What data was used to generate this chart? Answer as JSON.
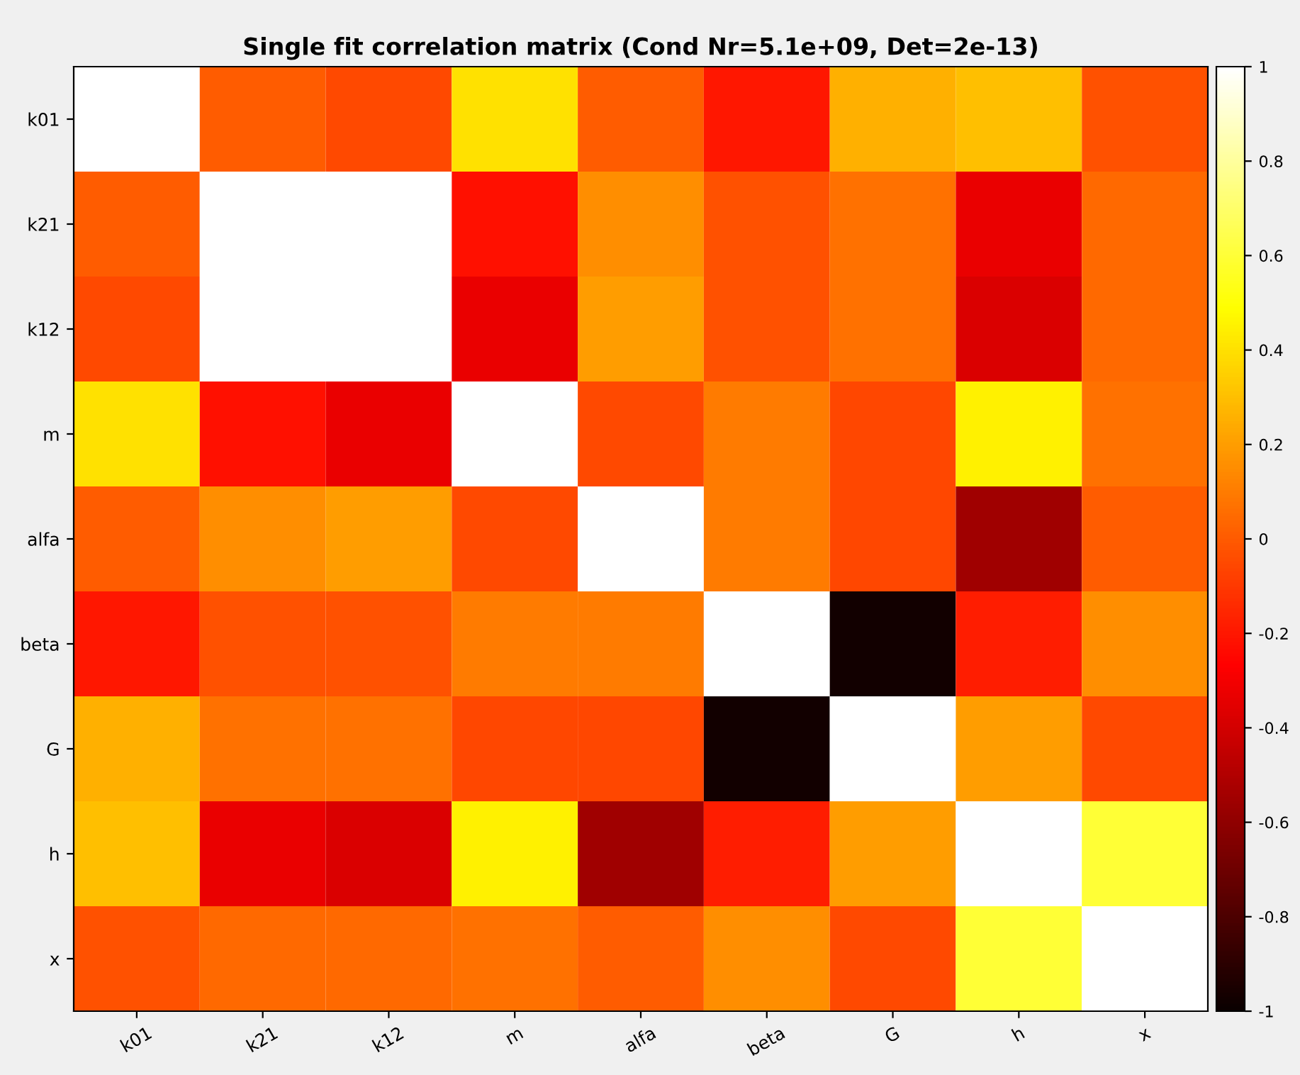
{
  "chart_data": {
    "type": "heatmap",
    "title": "Single fit correlation matrix (Cond Nr=5.1e+09, Det=2e-13)",
    "categories": [
      "k01",
      "k21",
      "k12",
      "m",
      "alfa",
      "beta",
      "G",
      "h",
      "x"
    ],
    "y_categories": [
      "k01",
      "k21",
      "k12",
      "m",
      "alfa",
      "beta",
      "G",
      "h",
      "x"
    ],
    "cells": [
      [
        1,
        0.0,
        -0.05,
        0.4,
        0.0,
        -0.2,
        0.25,
        0.3,
        -0.03
      ],
      [
        0.0,
        1,
        1,
        -0.22,
        0.15,
        -0.03,
        0.07,
        -0.33,
        0.04
      ],
      [
        -0.05,
        1,
        1,
        -0.33,
        0.2,
        -0.03,
        0.07,
        -0.38,
        0.04
      ],
      [
        0.4,
        -0.22,
        -0.33,
        1,
        -0.05,
        0.1,
        -0.06,
        0.45,
        0.07
      ],
      [
        0.0,
        0.15,
        0.2,
        -0.05,
        1,
        0.1,
        -0.06,
        -0.55,
        0.0
      ],
      [
        -0.2,
        -0.03,
        -0.03,
        0.1,
        0.1,
        1,
        -0.97,
        -0.18,
        0.15
      ],
      [
        0.25,
        0.07,
        0.07,
        -0.06,
        -0.06,
        -0.97,
        1,
        0.2,
        -0.05
      ],
      [
        0.3,
        -0.33,
        -0.38,
        0.45,
        -0.55,
        -0.18,
        0.2,
        1,
        0.6
      ],
      [
        -0.03,
        0.04,
        0.04,
        0.07,
        0.0,
        0.15,
        -0.05,
        0.6,
        1
      ]
    ],
    "clim": [
      -1,
      1
    ],
    "cticks": [
      {
        "value": -1,
        "label": "-1"
      },
      {
        "value": -0.8,
        "label": "-0.8"
      },
      {
        "value": -0.6,
        "label": "-0.6"
      },
      {
        "value": -0.4,
        "label": "-0.4"
      },
      {
        "value": -0.2,
        "label": "-0.2"
      },
      0,
      0.2,
      0.4,
      0.6,
      0.8,
      1
    ]
  }
}
